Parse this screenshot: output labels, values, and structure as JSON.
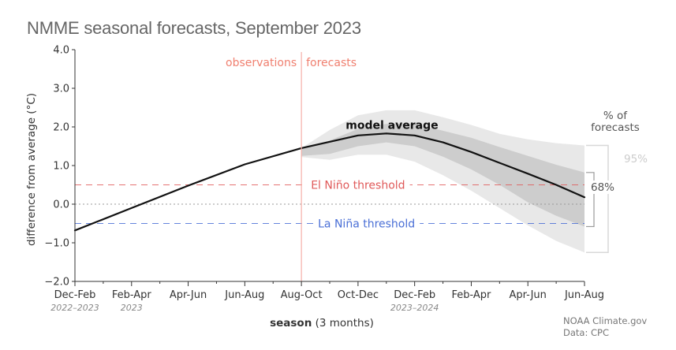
{
  "chart_data": {
    "type": "line",
    "title": "NMME seasonal forecasts, September 2023",
    "xlabel_bold": "season",
    "xlabel_rest": " (3 months)",
    "ylabel": "difference from average (°C)",
    "ylim": [
      -2.0,
      4.0
    ],
    "yticks": [
      "4.0",
      "3.0",
      "2.0",
      "1.0",
      "0.0",
      "−1.0",
      "−2.0"
    ],
    "ytick_values": [
      4,
      3,
      2,
      1,
      0,
      -1,
      -2
    ],
    "categories": [
      "Dec-Feb",
      "Feb-Apr",
      "Apr-Jun",
      "Jun-Aug",
      "Aug-Oct",
      "Oct-Dec",
      "Dec-Feb",
      "Feb-Apr",
      "Apr-Jun",
      "Jun-Aug"
    ],
    "category_index": [
      0,
      2,
      4,
      6,
      8,
      10,
      12,
      14,
      16,
      18
    ],
    "year_labels": [
      {
        "text": "2022–2023",
        "index": 0
      },
      {
        "text": "2023",
        "index": 2
      },
      {
        "text": "2023–2024",
        "index": 12
      }
    ],
    "observations_label": "observations",
    "forecasts_label": "forecasts",
    "divider_index": 8,
    "model_label": "model average",
    "model_average": {
      "x": [
        0,
        2,
        4,
        6,
        8,
        10,
        11,
        12,
        13,
        14,
        15,
        16,
        17,
        18
      ],
      "y": [
        -0.68,
        -0.1,
        0.48,
        1.03,
        1.45,
        1.78,
        1.83,
        1.78,
        1.6,
        1.35,
        1.07,
        0.79,
        0.5,
        0.18
      ]
    },
    "band_68": {
      "x": [
        8,
        9,
        10,
        11,
        12,
        13,
        14,
        15,
        16,
        17,
        18
      ],
      "upper": [
        1.45,
        1.65,
        1.95,
        2.08,
        2.08,
        1.9,
        1.72,
        1.48,
        1.25,
        1.02,
        0.82
      ],
      "lower": [
        1.25,
        1.3,
        1.5,
        1.6,
        1.5,
        1.23,
        0.9,
        0.5,
        0.05,
        -0.3,
        -0.58
      ]
    },
    "band_95": {
      "x": [
        8,
        9,
        10,
        11,
        12,
        13,
        14,
        15,
        16,
        17,
        18
      ],
      "upper": [
        1.45,
        1.92,
        2.3,
        2.43,
        2.43,
        2.25,
        2.05,
        1.82,
        1.68,
        1.58,
        1.52
      ],
      "lower": [
        1.22,
        1.15,
        1.28,
        1.28,
        1.1,
        0.75,
        0.35,
        -0.1,
        -0.55,
        -0.95,
        -1.25
      ]
    },
    "el_nino_threshold": {
      "value": 0.5,
      "label": "El Niño threshold",
      "color": "#e05a5a"
    },
    "la_nina_threshold": {
      "value": -0.5,
      "label": "La Niña threshold",
      "color": "#4a6fd6"
    },
    "legend": {
      "title_line1": "% of",
      "title_line2": "forecasts",
      "label_95": "95%",
      "label_68": "68%"
    },
    "colors": {
      "band_95": "#e8e8e8",
      "band_68": "#cdcdcd",
      "model_line": "#111111",
      "divider": "#f6b0a8",
      "zero_line": "#999999",
      "axis": "#333333"
    }
  },
  "credit": {
    "line1": "NOAA Climate.gov",
    "line2": "Data: CPC"
  }
}
